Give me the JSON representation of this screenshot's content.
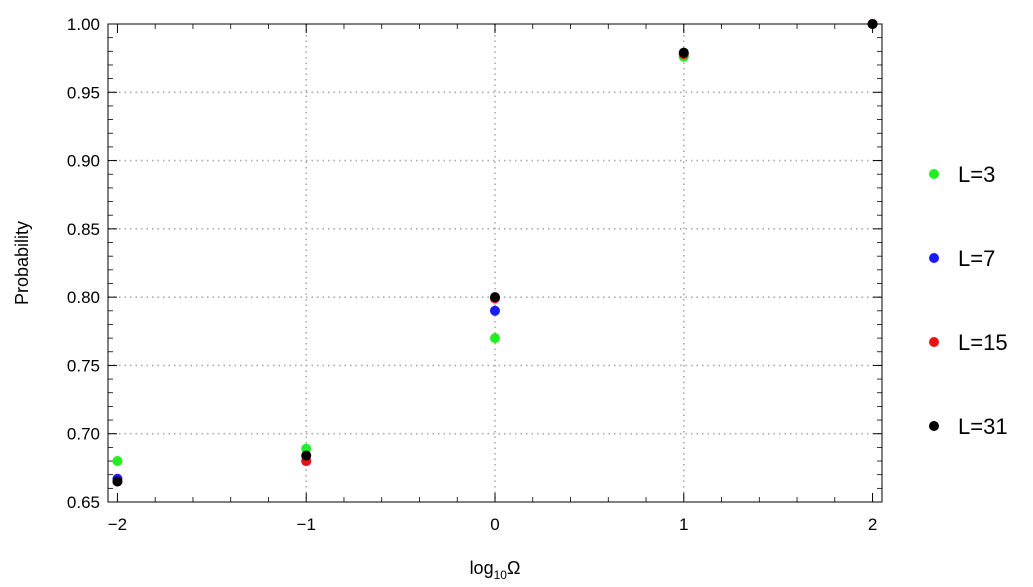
{
  "chart_data": {
    "type": "scatter",
    "title": "",
    "xlabel": "log",
    "xlabel_sub": "10",
    "xlabel_tail": "Ω",
    "ylabel": "Probability",
    "xlim": [
      -2.05,
      2.05
    ],
    "ylim": [
      0.65,
      1.0
    ],
    "x_ticks": [
      -2,
      -1,
      0,
      1,
      2
    ],
    "x_tick_labels": [
      "−2",
      "−1",
      "0",
      "1",
      "2"
    ],
    "y_ticks": [
      0.65,
      0.7,
      0.75,
      0.8,
      0.85,
      0.9,
      0.95,
      1.0
    ],
    "y_tick_labels": [
      "0.65",
      "0.70",
      "0.75",
      "0.80",
      "0.85",
      "0.90",
      "0.95",
      "1.00"
    ],
    "grid": true,
    "legend_position": "right",
    "series": [
      {
        "name": "L=3",
        "color": "#22ee22",
        "x": [
          -2,
          -1,
          0,
          1,
          2
        ],
        "y": [
          0.68,
          0.689,
          0.77,
          0.976,
          1.0
        ]
      },
      {
        "name": "L=7",
        "color": "#1a1aff",
        "x": [
          -2,
          -1,
          0,
          1,
          2
        ],
        "y": [
          0.667,
          0.68,
          0.79,
          0.978,
          1.0
        ]
      },
      {
        "name": "L=15",
        "color": "#ee1111",
        "x": [
          -2,
          -1,
          0,
          1,
          2
        ],
        "y": [
          0.665,
          0.68,
          0.799,
          0.978,
          1.0
        ]
      },
      {
        "name": "L=31",
        "color": "#000000",
        "x": [
          -2,
          -1,
          0,
          1,
          2
        ],
        "y": [
          0.665,
          0.684,
          0.8,
          0.979,
          1.0
        ]
      }
    ]
  }
}
